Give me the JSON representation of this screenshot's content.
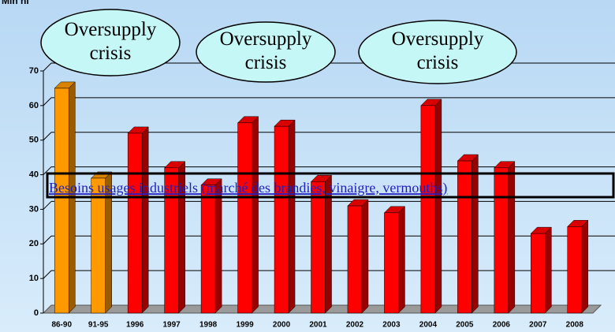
{
  "chart_data": {
    "type": "bar3d",
    "unit_label": "Mln hl",
    "categories": [
      "86-90",
      "91-95",
      "1996",
      "1997",
      "1998",
      "1999",
      "2000",
      "2001",
      "2002",
      "2003",
      "2004",
      "2005",
      "2006",
      "2007",
      "2008"
    ],
    "values": [
      65,
      39,
      52,
      42,
      37,
      55,
      54,
      38,
      31,
      29,
      60,
      44,
      42,
      23,
      25
    ],
    "colors": [
      "#ff9900",
      "#ff9900",
      "#ff0000",
      "#ff0000",
      "#ff0000",
      "#ff0000",
      "#ff0000",
      "#ff0000",
      "#ff0000",
      "#ff0000",
      "#ff0000",
      "#ff0000",
      "#ff0000",
      "#ff0000",
      "#ff0000"
    ],
    "ylim": [
      0,
      70
    ],
    "yticks": [
      0,
      10,
      20,
      30,
      40,
      50,
      60,
      70
    ],
    "grid": true,
    "annotations": [
      "Oversupply\ncrisis",
      "Oversupply\ncrisis",
      "Oversupply\ncrisis"
    ],
    "band_label": "Besoins usages industriels (marché des brandies, vinaigre, vermouths)"
  }
}
